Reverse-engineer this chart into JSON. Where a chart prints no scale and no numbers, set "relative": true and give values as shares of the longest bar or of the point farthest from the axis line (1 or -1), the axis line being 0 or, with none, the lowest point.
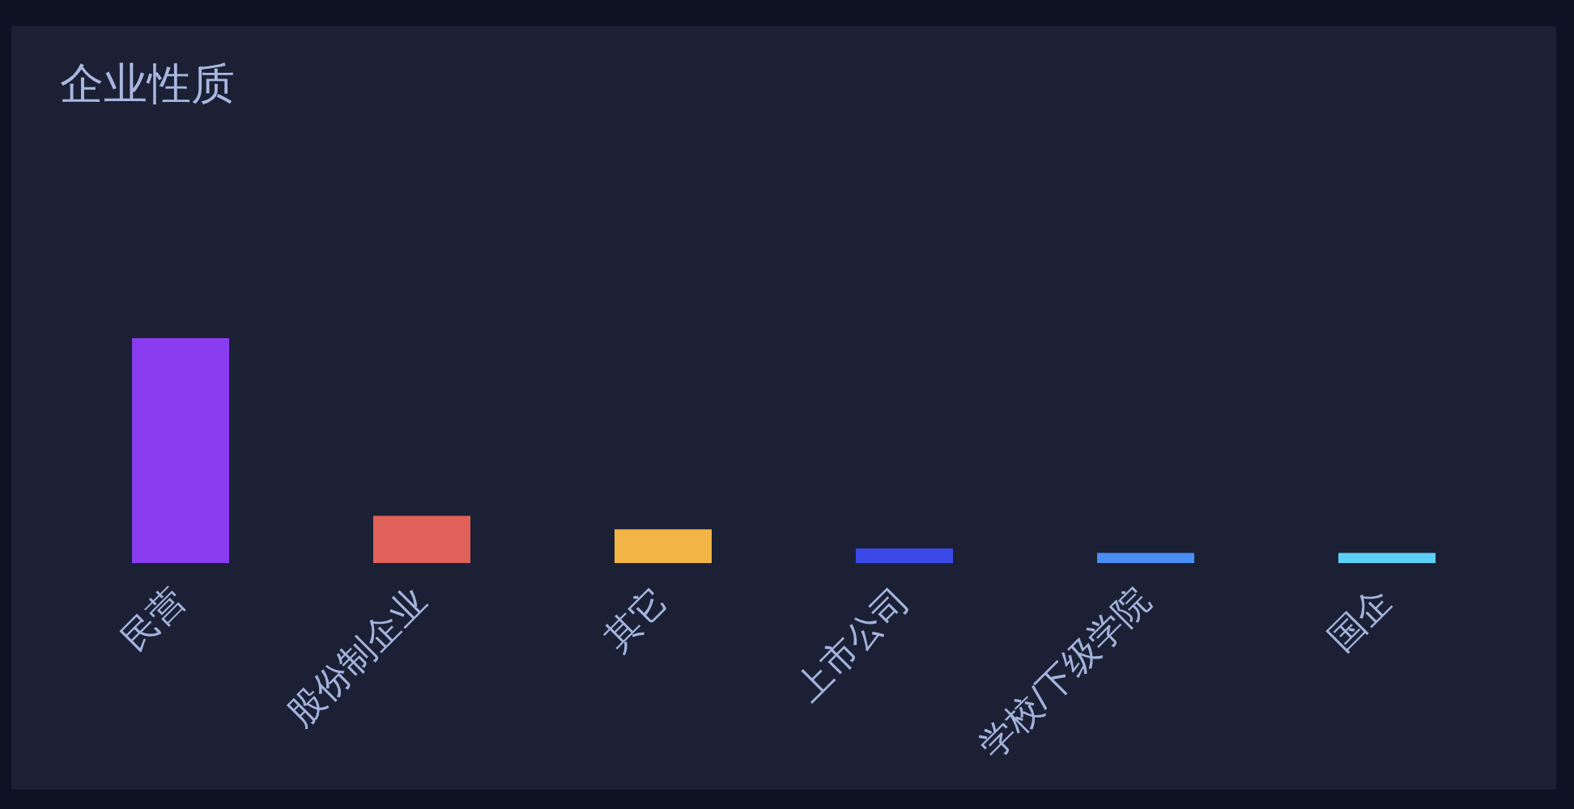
{
  "chart_data": {
    "type": "bar",
    "title": "企业性质",
    "categories": [
      "民营",
      "股份制企业",
      "其它",
      "上市公司",
      "学校/下级学院",
      "国企"
    ],
    "values": [
      1,
      0.21,
      0.15,
      0.065,
      0.045,
      0.045
    ],
    "colors": [
      "#8a3cf0",
      "#e0605a",
      "#f2b445",
      "#3b4ae8",
      "#4a8ef5",
      "#5cd0f5"
    ],
    "relative": true
  }
}
